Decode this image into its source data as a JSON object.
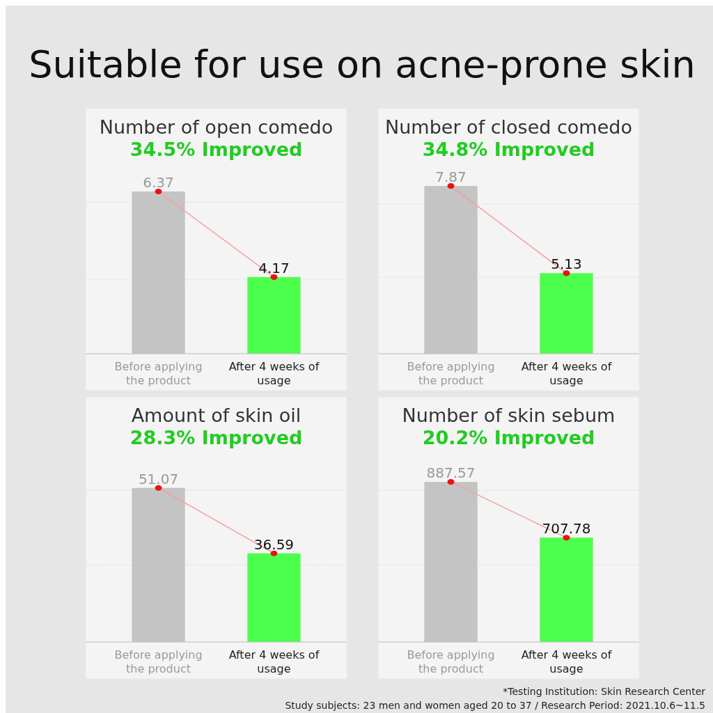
{
  "chart_data": [
    {
      "type": "bar",
      "title": "Number of open comedo",
      "subtitle": "34.5% Improved",
      "annotations": [
        "Suitable for use on acne-prone skin"
      ],
      "categories": [
        "Before applying the product",
        "After 4 weeks of usage"
      ],
      "series": [
        {
          "type": "bar",
          "colors": [
            "#c4c4c4",
            "#4cff4c"
          ],
          "values": [
            6.37,
            4.17
          ],
          "value_labels": [
            "6.37",
            "4.17"
          ]
        },
        {
          "type": "line",
          "color": "#f4a0a0",
          "values": [
            6.37,
            4.17
          ]
        }
      ],
      "ylim": [
        2.2,
        8.5
      ],
      "yticks": [
        {
          "value": 4.1,
          "label": null
        },
        {
          "value": 6.1,
          "label": null
        }
      ],
      "grid": "y",
      "tick_labels": "x",
      "marker": "circle"
    },
    {
      "type": "bar",
      "title": "Number of closed comedo",
      "subtitle": "34.8% Improved",
      "categories": [
        "Before applying the product",
        "After 4 weeks of usage"
      ],
      "series": [
        {
          "type": "bar",
          "colors": [
            "#c4c4c4",
            "#4cff4c"
          ],
          "values": [
            7.87,
            5.13
          ],
          "value_labels": [
            "7.87",
            "5.13"
          ]
        },
        {
          "type": "line",
          "color": "#f4a0a0",
          "values": [
            7.87,
            5.13
          ]
        }
      ],
      "ylim": [
        2.6,
        10.3
      ],
      "yticks": [
        {
          "value": 5.0,
          "label": null
        },
        {
          "value": 7.3,
          "label": null
        }
      ],
      "grid": "y",
      "tick_labels": "x",
      "marker": "circle"
    },
    {
      "type": "bar",
      "title": "Amount of skin oil",
      "subtitle": "28.3% Improved",
      "categories": [
        "Before applying the product",
        "After 4 weeks of usage"
      ],
      "series": [
        {
          "type": "bar",
          "colors": [
            "#c4c4c4",
            "#4cff4c"
          ],
          "values": [
            51.07,
            36.59
          ],
          "value_labels": [
            "51.07",
            "36.59"
          ]
        },
        {
          "type": "line",
          "color": "#f4a0a0",
          "values": [
            51.07,
            36.59
          ]
        }
      ],
      "ylim": [
        17,
        71.2
      ],
      "yticks": [
        {
          "value": 34,
          "label": null
        },
        {
          "value": 50.6,
          "label": null
        }
      ],
      "grid": "y",
      "tick_labels": "x",
      "marker": "circle"
    },
    {
      "type": "bar",
      "title": "Number of skin sebum",
      "subtitle": "20.2% Improved",
      "annotations": [
        "*Testing Institution: Skin Research Center",
        "Study subjects: 23 men and women aged 20 to 37 / Research Period: 2021.10.6~11.5"
      ],
      "categories": [
        "Before applying the product",
        "After 4 weeks of usage"
      ],
      "series": [
        {
          "type": "bar",
          "colors": [
            "#c4c4c4",
            "#4cff4c"
          ],
          "values": [
            887.57,
            707.78
          ],
          "value_labels": [
            "887.57",
            "707.78"
          ]
        },
        {
          "type": "line",
          "color": "#f4a0a0",
          "values": [
            887.57,
            707.78
          ]
        }
      ],
      "ylim": [
        371,
        1162
      ],
      "yticks": [
        {
          "value": 620,
          "label": null
        },
        {
          "value": 860,
          "label": null
        }
      ],
      "grid": "y",
      "tick_labels": "x",
      "marker": "circle"
    }
  ]
}
